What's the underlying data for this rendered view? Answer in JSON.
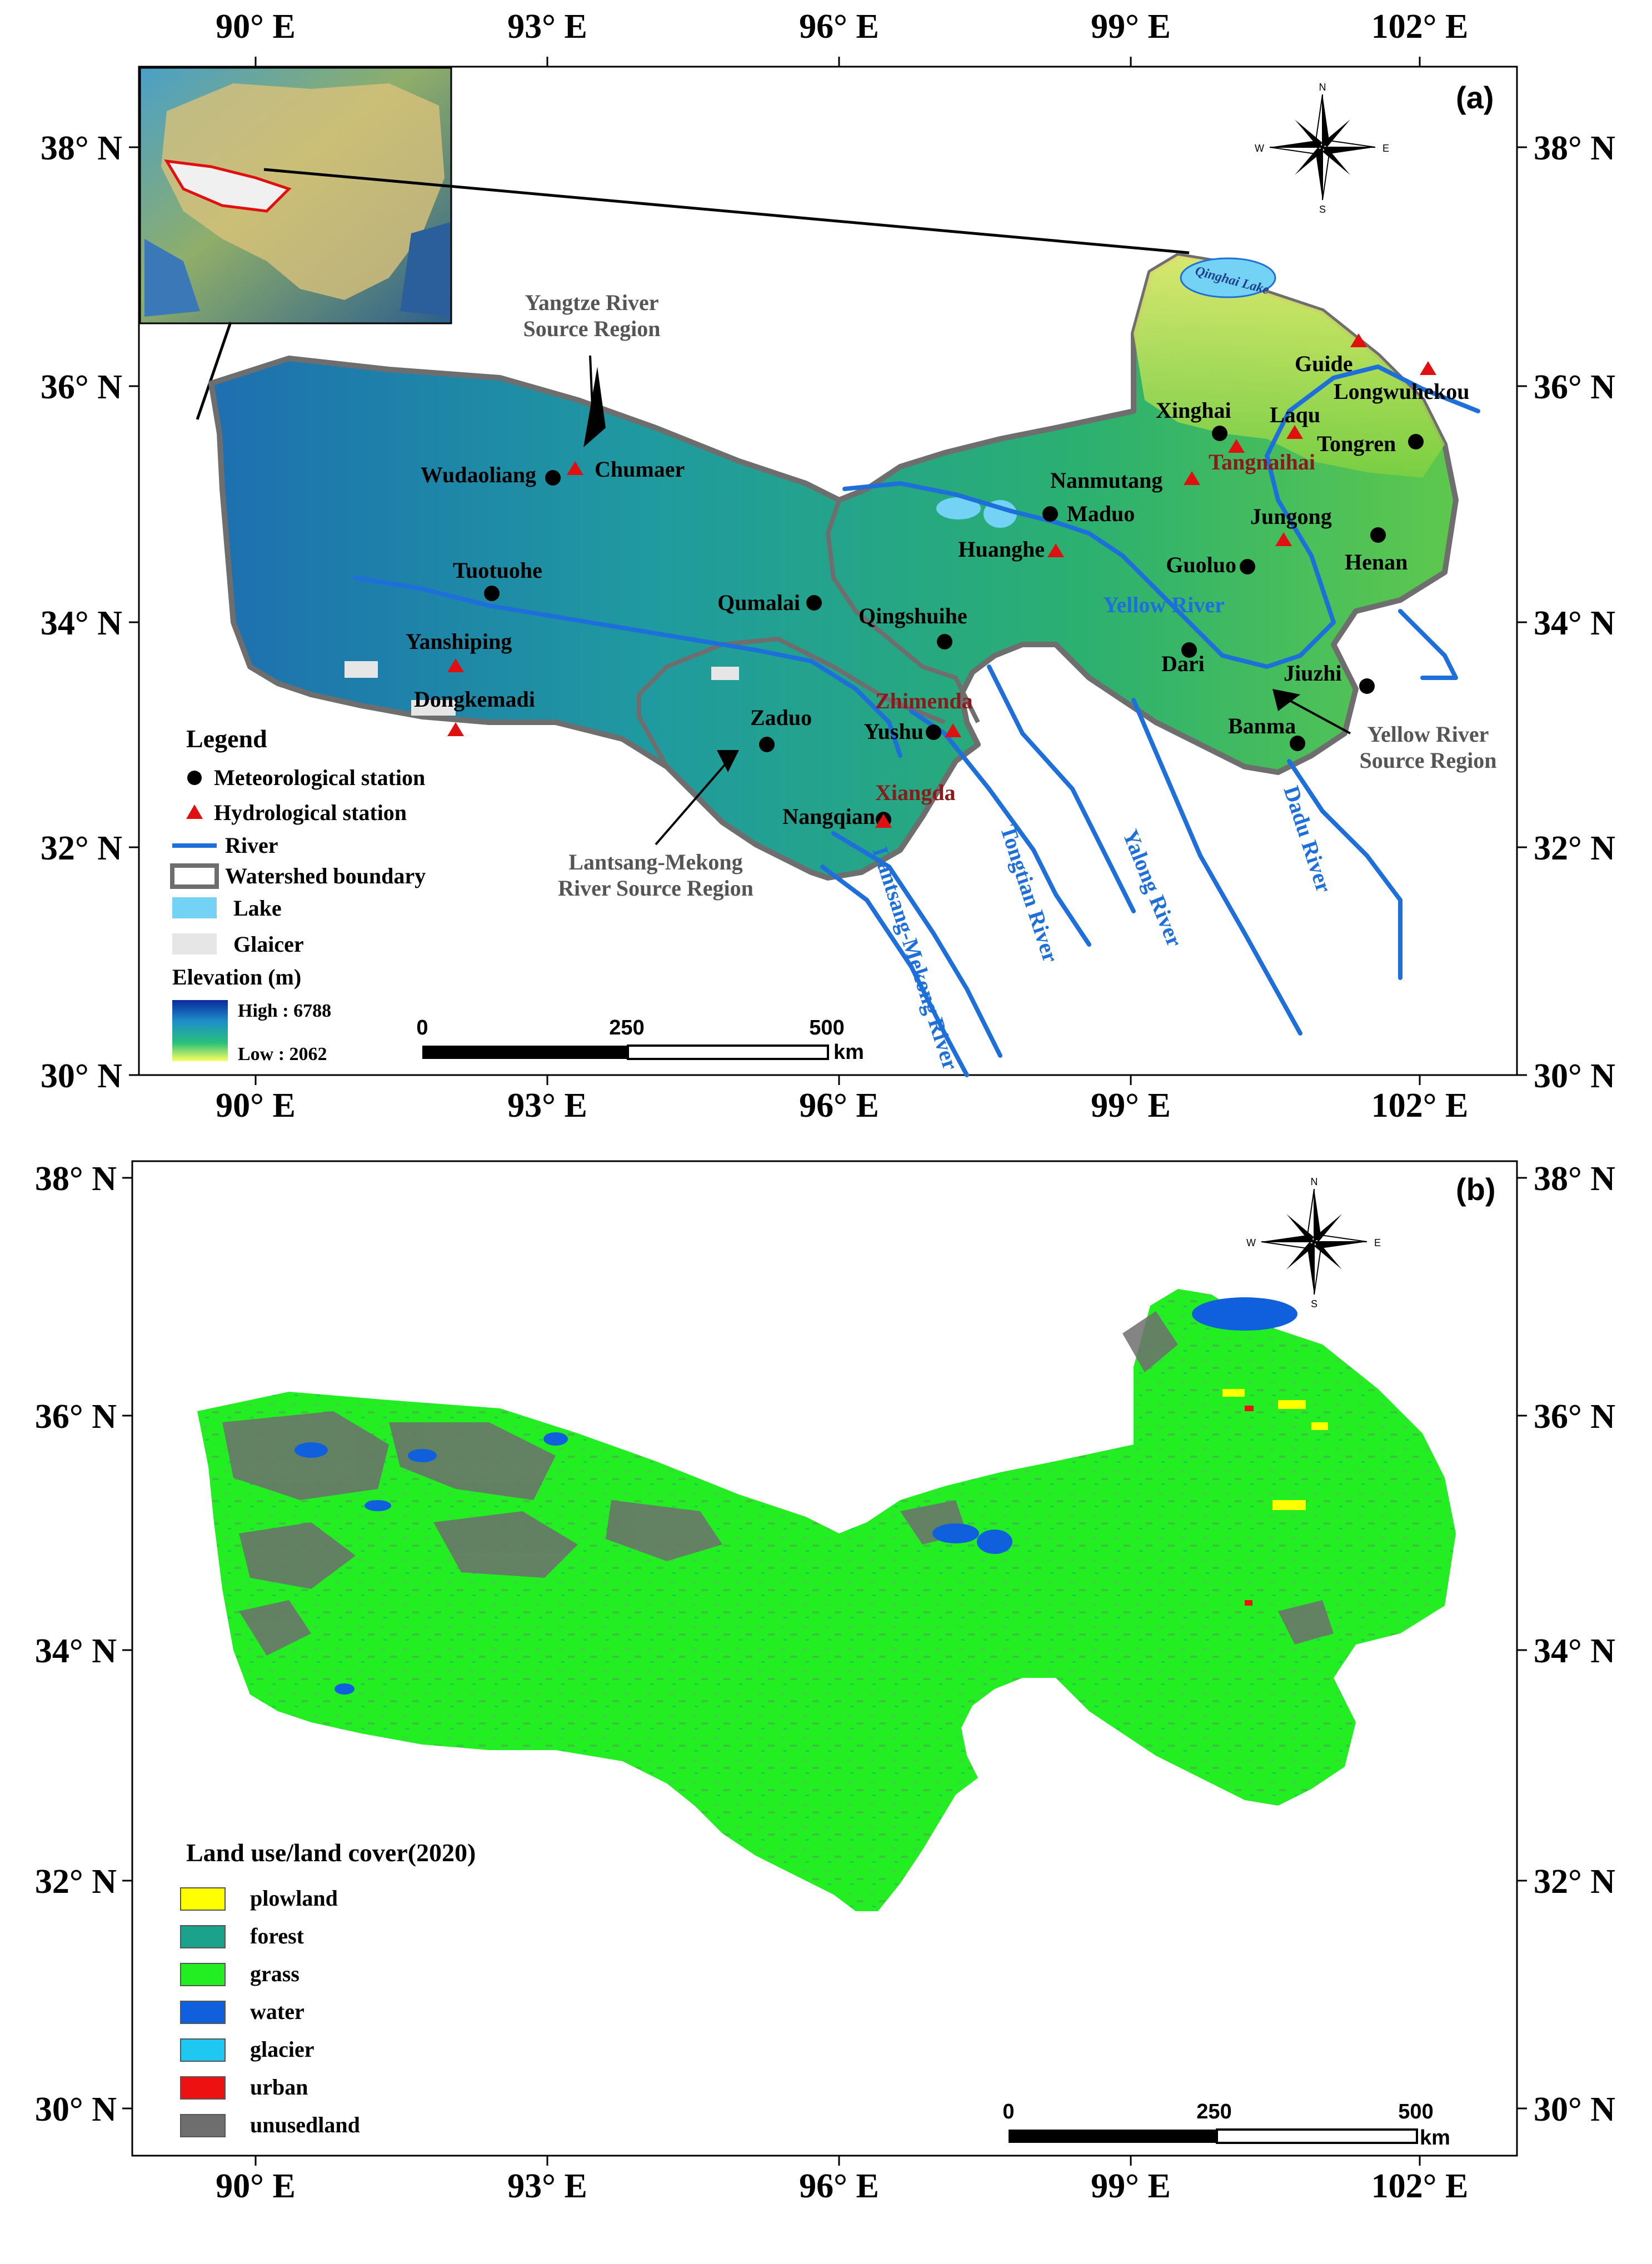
{
  "panel_a": {
    "tag": "(a)",
    "lon_labels": [
      "90° E",
      "93° E",
      "96° E",
      "99° E",
      "102° E"
    ],
    "lat_labels": [
      "38° N",
      "36° N",
      "34° N",
      "32° N",
      "30° N"
    ],
    "lakes": {
      "qinghai": "Qinghai Lake"
    },
    "regions": {
      "yangtze": [
        "Yangtze River",
        "Source Region"
      ],
      "lantsang": [
        "Lantsang-Mekong",
        "River Source Region"
      ],
      "yellow": [
        "Yellow River",
        "Source Region"
      ]
    },
    "met_stations": [
      "Wudaoliang",
      "Tuotuohe",
      "Qumalai",
      "Qingshuihe",
      "Zaduo",
      "Yushu",
      "Nangqian",
      "Maduo",
      "Xinghai",
      "Tongren",
      "Guoluo",
      "Henan",
      "Dari",
      "Jiuzhi",
      "Banma"
    ],
    "hyd_stations": [
      "Chumaer",
      "Yanshiping",
      "Dongkemadi",
      "Zhimenda",
      "Xiangda",
      "Huanghe",
      "Nanmutang",
      "Tangnaihai",
      "Laqu",
      "Guide",
      "Longwuhekou",
      "Jungong"
    ],
    "rivers": [
      "Yellow River",
      "Tongtian River",
      "Yalong River",
      "Dadu River",
      "Lantsang-Mekong River"
    ],
    "legend": {
      "title": "Legend",
      "items": [
        "Meteorological station",
        "Hydrological station",
        "River",
        "Watershed boundary",
        "Lake",
        "Glaicer"
      ],
      "elevation_title": "Elevation (m)",
      "elevation_high": "High : 6788",
      "elevation_low": "Low : 2062"
    },
    "scale": {
      "ticks": [
        "0",
        "250",
        "500"
      ],
      "unit": "km"
    },
    "compass": {
      "n": "N",
      "s": "S",
      "e": "E",
      "w": "W"
    }
  },
  "panel_b": {
    "tag": "(b)",
    "lon_labels": [
      "90° E",
      "93° E",
      "96° E",
      "99° E",
      "102° E"
    ],
    "lat_labels": [
      "38° N",
      "36° N",
      "34° N",
      "32° N",
      "30° N"
    ],
    "legend": {
      "title": "Land use/land cover(2020)",
      "items": [
        {
          "label": "plowland",
          "color": "#ffff00"
        },
        {
          "label": "forest",
          "color": "#1aa38a"
        },
        {
          "label": "grass",
          "color": "#22ee22"
        },
        {
          "label": "water",
          "color": "#1060dd"
        },
        {
          "label": "glacier",
          "color": "#1ec8f0"
        },
        {
          "label": "urban",
          "color": "#ee1111"
        },
        {
          "label": "unusedland",
          "color": "#6e6e6e"
        }
      ]
    },
    "scale": {
      "ticks": [
        "0",
        "250",
        "500"
      ],
      "unit": "km"
    },
    "compass": {
      "n": "N",
      "s": "S",
      "e": "E",
      "w": "W"
    }
  },
  "colors": {
    "met_station": "#000000",
    "hyd_station": "#e01010",
    "river": "#1e6fd9",
    "boundary": "#6e6e6e",
    "lake": "#74d3f5",
    "glacier": "#e6e6e6",
    "elev_high": "#0a2a9c",
    "elev_low": "#ffff60"
  }
}
